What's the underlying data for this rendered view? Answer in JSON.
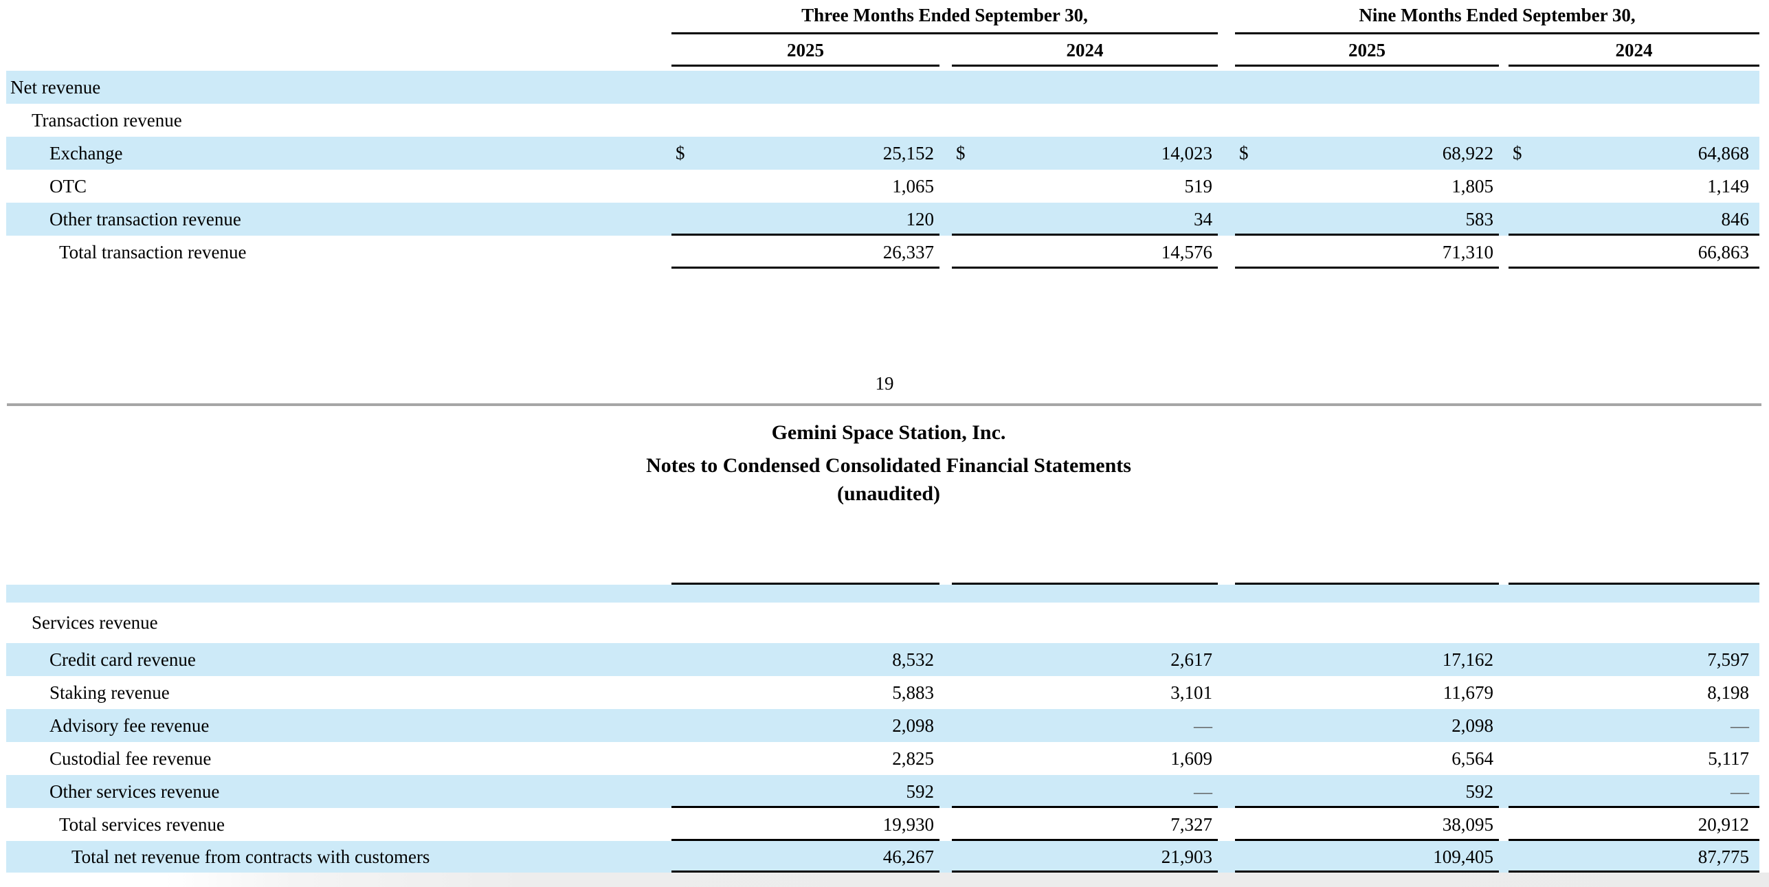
{
  "page": {
    "number": "19",
    "company": "Gemini Space Station, Inc.",
    "title": "Notes to Condensed Consolidated Financial Statements",
    "subtitle": "(unaudited)"
  },
  "table": {
    "highlight_color": "#cdeaf8",
    "line_color": "#000000",
    "groups": [
      "Three Months Ended September 30,",
      "Nine Months Ended September 30,"
    ],
    "years": [
      "2025",
      "2024",
      "2025",
      "2024"
    ],
    "currency_symbol": "$",
    "top_rows": [
      {
        "label": "Net revenue",
        "indent": 0,
        "shaded": true,
        "dollar": false,
        "underline": false,
        "values": [
          "",
          "",
          "",
          ""
        ]
      },
      {
        "label": "Transaction revenue",
        "indent": 1,
        "shaded": false,
        "dollar": false,
        "underline": false,
        "values": [
          "",
          "",
          "",
          ""
        ]
      },
      {
        "label": "Exchange",
        "indent": 2,
        "shaded": true,
        "dollar": true,
        "underline": false,
        "values": [
          "25,152",
          "14,023",
          "68,922",
          "64,868"
        ]
      },
      {
        "label": "OTC",
        "indent": 2,
        "shaded": false,
        "dollar": false,
        "underline": false,
        "values": [
          "1,065",
          "519",
          "1,805",
          "1,149"
        ]
      },
      {
        "label": "Other transaction revenue",
        "indent": 2,
        "shaded": true,
        "dollar": false,
        "underline": true,
        "values": [
          "120",
          "34",
          "583",
          "846"
        ]
      },
      {
        "label": "Total transaction revenue",
        "indent": 3,
        "shaded": false,
        "dollar": false,
        "underline": true,
        "values": [
          "26,337",
          "14,576",
          "71,310",
          "66,863"
        ]
      }
    ],
    "bottom_rows": [
      {
        "label": "",
        "indent": 0,
        "shaded": true,
        "dollar": false,
        "underline": false,
        "spacer": true,
        "values": [
          "",
          "",
          "",
          ""
        ]
      },
      {
        "label": "Services revenue",
        "indent": 1,
        "shaded": false,
        "dollar": false,
        "underline": false,
        "tall": true,
        "values": [
          "",
          "",
          "",
          ""
        ]
      },
      {
        "label": "Credit card revenue",
        "indent": 2,
        "shaded": true,
        "dollar": false,
        "underline": false,
        "values": [
          "8,532",
          "2,617",
          "17,162",
          "7,597"
        ]
      },
      {
        "label": "Staking revenue",
        "indent": 2,
        "shaded": false,
        "dollar": false,
        "underline": false,
        "values": [
          "5,883",
          "3,101",
          "11,679",
          "8,198"
        ]
      },
      {
        "label": "Advisory fee revenue",
        "indent": 2,
        "shaded": true,
        "dollar": false,
        "underline": false,
        "values": [
          "2,098",
          "—",
          "2,098",
          "—"
        ]
      },
      {
        "label": "Custodial fee revenue",
        "indent": 2,
        "shaded": false,
        "dollar": false,
        "underline": false,
        "values": [
          "2,825",
          "1,609",
          "6,564",
          "5,117"
        ]
      },
      {
        "label": "Other services revenue",
        "indent": 2,
        "shaded": true,
        "dollar": false,
        "underline": true,
        "values": [
          "592",
          "—",
          "592",
          "—"
        ]
      },
      {
        "label": "Total services revenue",
        "indent": 3,
        "shaded": false,
        "dollar": false,
        "underline": true,
        "values": [
          "19,930",
          "7,327",
          "38,095",
          "20,912"
        ]
      },
      {
        "label": "Total net revenue from contracts with customers",
        "indent": 4,
        "shaded": true,
        "dollar": false,
        "underline": true,
        "last": true,
        "values": [
          "46,267",
          "21,903",
          "109,405",
          "87,775"
        ]
      }
    ]
  }
}
